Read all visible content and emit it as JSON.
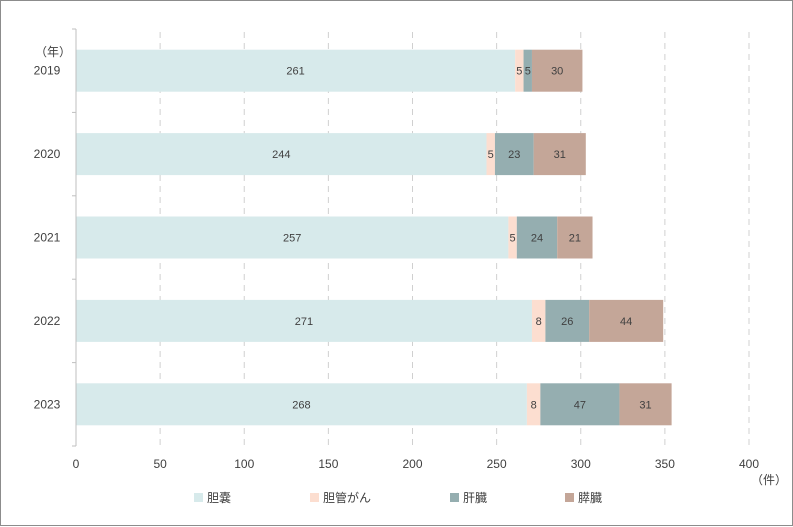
{
  "chart_data": {
    "type": "bar",
    "orientation": "horizontal",
    "stacked": true,
    "y_unit": "（年）",
    "x_unit": "（件）",
    "categories": [
      "2019",
      "2020",
      "2021",
      "2022",
      "2023"
    ],
    "series": [
      {
        "name": "胆嚢",
        "color": "#d7eaeb",
        "values": [
          261,
          244,
          257,
          271,
          268
        ]
      },
      {
        "name": "胆管がん",
        "color": "#fcded0",
        "values": [
          5,
          5,
          5,
          8,
          8
        ]
      },
      {
        "name": "肝臓",
        "color": "#95aeb0",
        "values": [
          5,
          23,
          24,
          26,
          47
        ]
      },
      {
        "name": "膵臓",
        "color": "#c4a698",
        "values": [
          30,
          31,
          21,
          44,
          31
        ]
      }
    ],
    "xlim": [
      0,
      400
    ],
    "x_ticks": [
      "0",
      "50",
      "100",
      "150",
      "200",
      "250",
      "300",
      "350",
      "400"
    ],
    "grid": "vertical-dashed",
    "legend_position": "bottom"
  }
}
